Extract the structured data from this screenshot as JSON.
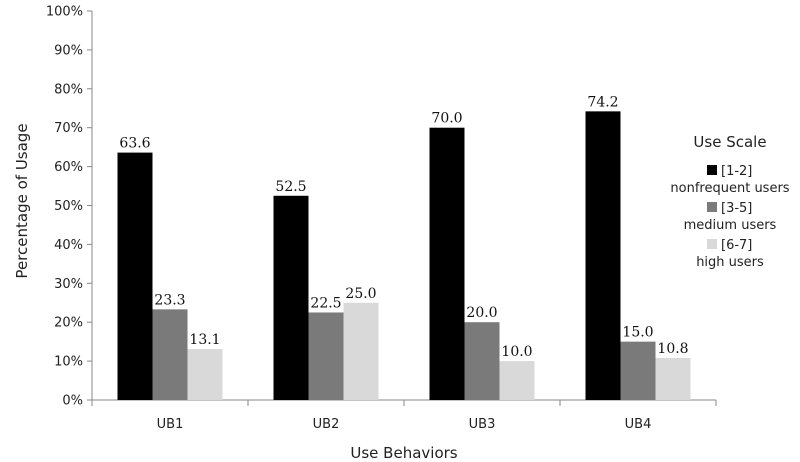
{
  "chart_data": {
    "type": "bar",
    "xlabel": "Use Behaviors",
    "ylabel": "Percentage of Usage",
    "ylim": [
      0,
      100
    ],
    "yticks": [
      0,
      10,
      20,
      30,
      40,
      50,
      60,
      70,
      80,
      90,
      100
    ],
    "ytick_labels": [
      "0%",
      "10%",
      "20%",
      "30%",
      "40%",
      "50%",
      "60%",
      "70%",
      "80%",
      "90%",
      "100%"
    ],
    "categories": [
      "UB1",
      "UB2",
      "UB3",
      "UB4"
    ],
    "series": [
      {
        "name": "[1-2]",
        "name_sub": "nonfrequent users",
        "color": "#000000",
        "values": [
          63.6,
          52.5,
          70.0,
          74.2
        ],
        "labels": [
          "63.6",
          "52.5",
          "70.0",
          "74.2"
        ]
      },
      {
        "name": "[3-5]",
        "name_sub": "medium users",
        "color": "#7a7a7a",
        "values": [
          23.3,
          22.5,
          20.0,
          15.0
        ],
        "labels": [
          "23.3",
          "22.5",
          "20.0",
          "15.0"
        ]
      },
      {
        "name": "[6-7]",
        "name_sub": "high users",
        "color": "#d9d9d9",
        "values": [
          13.1,
          25.0,
          10.0,
          10.8
        ],
        "labels": [
          "13.1",
          "25.0",
          "10.0",
          "10.8"
        ]
      }
    ],
    "legend": {
      "title": "Use Scale",
      "position": "right"
    },
    "grid": false
  }
}
